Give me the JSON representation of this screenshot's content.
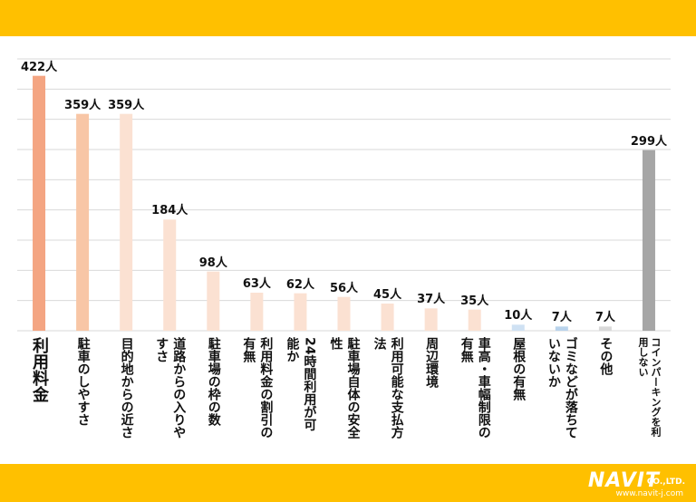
{
  "chart_data": {
    "type": "bar",
    "categories": [
      "利用料金",
      "駐車のしやすさ",
      "目的地からの近さ",
      "道路からの入りやすさ",
      "駐車場の枠の数",
      "利用料金の割引の有無",
      "24時間利用が可能か",
      "駐車場自体の安全性",
      "利用可能な支払方法",
      "周辺環境",
      "車高・車幅制限の有無",
      "屋根の有無",
      "ゴミなどが落ちていないか",
      "その他",
      "コインパーキングを利用しない"
    ],
    "values": [
      422,
      359,
      359,
      184,
      98,
      63,
      62,
      56,
      45,
      37,
      35,
      10,
      7,
      7,
      299
    ],
    "value_labels": [
      "422人",
      "359人",
      "359人",
      "184人",
      "98人",
      "63人",
      "62人",
      "56人",
      "45人",
      "37人",
      "35人",
      "10人",
      "7人",
      "7人",
      "299人"
    ],
    "colors": [
      "#f4a582",
      "#f8c6a6",
      "#fbe1d2",
      "#fbe1d2",
      "#fbe1d2",
      "#fbe1d2",
      "#fbe1d2",
      "#fbe1d2",
      "#fbe1d2",
      "#fbe1d2",
      "#fbe1d2",
      "#cfe1f3",
      "#b9d3ec",
      "#d9d9d9",
      "#a6a6a6"
    ],
    "ylim": [
      0,
      450
    ],
    "yticks": [
      0,
      50,
      100,
      150,
      200,
      250,
      300,
      350,
      400,
      450
    ],
    "grid": true
  },
  "footer": {
    "logo": "NAVIT",
    "company": "CO.,LTD.",
    "url": "www.navit-j.com"
  }
}
